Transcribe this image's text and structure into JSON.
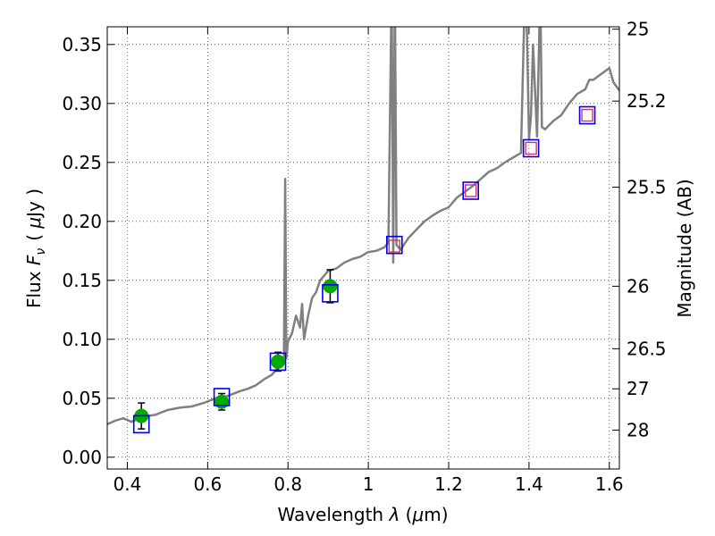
{
  "chart_data": {
    "type": "scatter",
    "title": "",
    "xlabel_prefix": "Wavelength ",
    "xlabel_lambda": "λ",
    "xlabel_units_open": " (",
    "xlabel_mu": "μ",
    "xlabel_units_close": "m)",
    "ylabel_prefix": "Flux ",
    "ylabel_symbol": "F",
    "ylabel_subscript": "ν",
    "ylabel_units_open": "( ",
    "ylabel_mu": "μ",
    "ylabel_units_close": "Jy )",
    "y2label": "Magnitude (AB)",
    "xlim": [
      0.35,
      1.625
    ],
    "ylim": [
      -0.01,
      0.365
    ],
    "grid": true,
    "x_ticks": [
      0.4,
      0.6,
      0.8,
      1.0,
      1.2,
      1.4,
      1.6
    ],
    "x_tick_labels": [
      "0.4",
      "0.6",
      "0.8",
      "1",
      "1.2",
      "1.4",
      "1.6"
    ],
    "y_ticks": [
      0.0,
      0.05,
      0.1,
      0.15,
      0.2,
      0.25,
      0.3,
      0.35
    ],
    "y_tick_labels": [
      "0.00",
      "0.05",
      "0.10",
      "0.15",
      "0.20",
      "0.25",
      "0.30",
      "0.35"
    ],
    "y2_ticks": [
      {
        "label": "25",
        "flux": 0.363
      },
      {
        "label": "25.2",
        "flux": 0.302
      },
      {
        "label": "25.5",
        "flux": 0.229
      },
      {
        "label": "26",
        "flux": 0.145
      },
      {
        "label": "26.5",
        "flux": 0.092
      },
      {
        "label": "27",
        "flux": 0.058
      },
      {
        "label": "28",
        "flux": 0.023
      }
    ],
    "model_spectrum": {
      "color": "#808080",
      "x": [
        0.35,
        0.37,
        0.39,
        0.41,
        0.43,
        0.45,
        0.47,
        0.5,
        0.53,
        0.56,
        0.59,
        0.62,
        0.65,
        0.68,
        0.7,
        0.72,
        0.74,
        0.76,
        0.78,
        0.79,
        0.793,
        0.796,
        0.8,
        0.81,
        0.82,
        0.83,
        0.835,
        0.84,
        0.85,
        0.86,
        0.87,
        0.88,
        0.9,
        0.92,
        0.94,
        0.96,
        0.98,
        1.0,
        1.02,
        1.04,
        1.05,
        1.058,
        1.062,
        1.066,
        1.07,
        1.08,
        1.1,
        1.12,
        1.14,
        1.16,
        1.18,
        1.2,
        1.22,
        1.24,
        1.26,
        1.28,
        1.3,
        1.32,
        1.34,
        1.36,
        1.38,
        1.39,
        1.395,
        1.4,
        1.405,
        1.41,
        1.42,
        1.428,
        1.432,
        1.44,
        1.46,
        1.48,
        1.5,
        1.52,
        1.54,
        1.55,
        1.56,
        1.58,
        1.6,
        1.61,
        1.625
      ],
      "y": [
        0.028,
        0.031,
        0.033,
        0.03,
        0.033,
        0.035,
        0.036,
        0.04,
        0.042,
        0.043,
        0.046,
        0.05,
        0.052,
        0.056,
        0.058,
        0.061,
        0.066,
        0.07,
        0.078,
        0.085,
        0.236,
        0.084,
        0.098,
        0.105,
        0.12,
        0.11,
        0.13,
        0.1,
        0.12,
        0.135,
        0.14,
        0.15,
        0.158,
        0.16,
        0.165,
        0.168,
        0.17,
        0.174,
        0.175,
        0.178,
        0.182,
        0.4,
        0.165,
        0.4,
        0.18,
        0.176,
        0.186,
        0.193,
        0.2,
        0.205,
        0.209,
        0.212,
        0.22,
        0.225,
        0.23,
        0.236,
        0.242,
        0.245,
        0.25,
        0.254,
        0.258,
        0.4,
        0.36,
        0.27,
        0.29,
        0.35,
        0.272,
        0.4,
        0.28,
        0.278,
        0.285,
        0.29,
        0.3,
        0.308,
        0.312,
        0.32,
        0.32,
        0.325,
        0.33,
        0.318,
        0.311
      ]
    },
    "model_photometry": {
      "marker": "open-square",
      "edge_color": "#0000ee",
      "x": [
        0.435,
        0.635,
        0.775,
        0.905,
        1.065,
        1.255,
        1.405,
        1.545
      ],
      "y": [
        0.028,
        0.051,
        0.081,
        0.139,
        0.18,
        0.226,
        0.262,
        0.29
      ]
    },
    "observed_photometry": {
      "marker": "filled-circle",
      "color": "#00aa00",
      "x": [
        0.435,
        0.635,
        0.775,
        0.905
      ],
      "y": [
        0.035,
        0.047,
        0.081,
        0.145
      ],
      "yerr": [
        0.011,
        0.007,
        0.008,
        0.014
      ]
    },
    "upper_limits": {
      "marker": "open-square",
      "edge_color": "#dd3355",
      "x": [
        1.065,
        1.255,
        1.405,
        1.545
      ],
      "y": [
        0.179,
        0.226,
        0.262,
        0.29
      ]
    }
  }
}
